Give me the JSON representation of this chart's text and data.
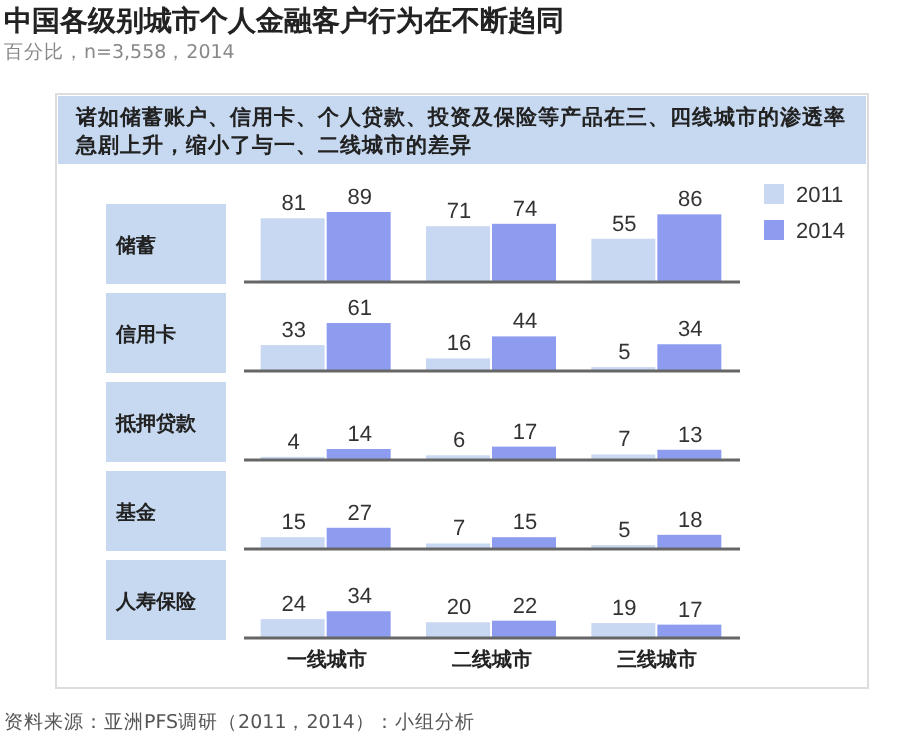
{
  "chart_data": [
    {
      "type": "bar",
      "title": "中国各级别城市个人金融客户行为在不断趋同",
      "subtitle": "百分比，n=3,558，2014",
      "annotations": [
        "诸如储蓄账户、信用卡、个人贷款、投资及保险等产品在三、四线城市的渗透率急剧上升，缩小了与一、二线城市的差异"
      ],
      "ylabel": "储蓄",
      "categories": [
        null,
        null,
        null
      ],
      "tick_labels": false,
      "data_labels": true,
      "legend": "top right",
      "series": [
        {
          "name": "2011",
          "color": "#c9d8f2",
          "values": [
            81,
            71,
            55
          ]
        },
        {
          "name": "2014",
          "color": "#8e9cf0",
          "values": [
            89,
            74,
            86
          ]
        }
      ]
    },
    {
      "type": "bar",
      "ylabel": "信用卡",
      "categories": [
        null,
        null,
        null
      ],
      "tick_labels": false,
      "data_labels": true,
      "series": [
        {
          "color": "#c9d8f2",
          "values": [
            33,
            16,
            5
          ]
        },
        {
          "color": "#8e9cf0",
          "values": [
            61,
            44,
            34
          ]
        }
      ]
    },
    {
      "type": "bar",
      "ylabel": "抵押贷款",
      "categories": [
        null,
        null,
        null
      ],
      "tick_labels": false,
      "data_labels": true,
      "series": [
        {
          "color": "#c9d8f2",
          "values": [
            4,
            6,
            7
          ]
        },
        {
          "color": "#8e9cf0",
          "values": [
            14,
            17,
            13
          ]
        }
      ]
    },
    {
      "type": "bar",
      "ylabel": "基金",
      "categories": [
        null,
        null,
        null
      ],
      "tick_labels": false,
      "data_labels": true,
      "series": [
        {
          "color": "#c9d8f2",
          "values": [
            15,
            7,
            5
          ]
        },
        {
          "color": "#8e9cf0",
          "values": [
            27,
            15,
            18
          ]
        }
      ]
    },
    {
      "type": "bar",
      "ylabel": "人寿保险",
      "categories": [
        "一线城市",
        "二线城市",
        "三线城市"
      ],
      "tick_labels": "x",
      "data_labels": true,
      "annotations": [
        "资料来源：亚洲PFS调研（2011，2014）：小组分析"
      ],
      "series": [
        {
          "color": "#c9d8f2",
          "values": [
            24,
            20,
            19
          ]
        },
        {
          "color": "#8e9cf0",
          "values": [
            34,
            22,
            17
          ]
        }
      ]
    }
  ]
}
